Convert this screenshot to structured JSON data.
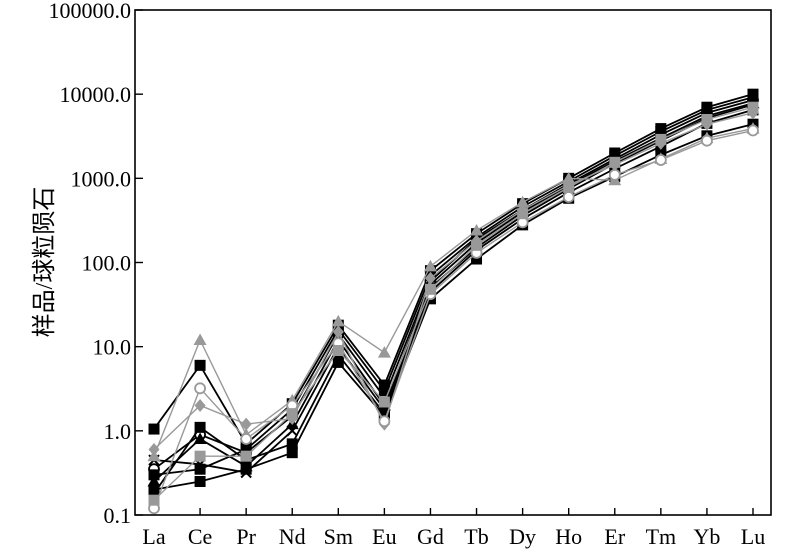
{
  "chart_data": {
    "type": "line",
    "y_scale": "log",
    "ylim": [
      0.1,
      100000
    ],
    "ylabel": "样品/球粒陨石",
    "xlabel": "",
    "title": "",
    "grid": false,
    "legend": "none",
    "categories": [
      "La",
      "Ce",
      "Pr",
      "Nd",
      "Sm",
      "Eu",
      "Gd",
      "Tb",
      "Dy",
      "Ho",
      "Er",
      "Tm",
      "Yb",
      "Lu"
    ],
    "y_tick_labels": [
      "100000.0",
      "10000.0",
      "1000.0",
      "100.0",
      "10.0",
      "1.0",
      "0.1"
    ],
    "series": [
      {
        "color": "#000000",
        "marker": "square",
        "values": [
          1.05,
          6.0,
          0.7,
          2.1,
          18,
          3.5,
          80,
          220,
          500,
          1000,
          2000,
          3900,
          7000,
          10000
        ]
      },
      {
        "color": "#000000",
        "marker": "square",
        "values": [
          0.2,
          0.25,
          0.35,
          0.55,
          6.5,
          1.5,
          37,
          110,
          280,
          580,
          1050,
          1900,
          3200,
          4400
        ]
      },
      {
        "color": "#000000",
        "marker": "circle",
        "values": [
          0.35,
          0.9,
          0.55,
          1.5,
          14,
          2.5,
          60,
          190,
          420,
          860,
          1700,
          3300,
          6000,
          8500
        ]
      },
      {
        "color": "#000000",
        "marker": "cross",
        "values": [
          0.45,
          0.4,
          0.32,
          1.0,
          10,
          1.8,
          50,
          150,
          360,
          750,
          1500,
          2800,
          5200,
          7500
        ]
      },
      {
        "color": "#000000",
        "marker": "square",
        "values": [
          0.18,
          1.1,
          0.45,
          0.7,
          8,
          1.6,
          45,
          140,
          330,
          680,
          1300,
          2400,
          4500,
          6500
        ]
      },
      {
        "color": "#000000",
        "marker": "triangle",
        "values": [
          0.25,
          0.8,
          0.38,
          1.2,
          12,
          2.0,
          55,
          170,
          400,
          820,
          1600,
          3000,
          5500,
          7800
        ]
      },
      {
        "color": "#000000",
        "marker": "square",
        "values": [
          0.3,
          0.35,
          0.6,
          1.8,
          16,
          3.0,
          70,
          200,
          460,
          920,
          1850,
          3600,
          6500,
          9200
        ]
      },
      {
        "color": "#999999",
        "marker": "triangle",
        "values": [
          0.5,
          12,
          0.9,
          2.3,
          20,
          8.5,
          90,
          240,
          520,
          1000,
          950,
          1700,
          3000,
          3900
        ]
      },
      {
        "color": "#999999",
        "marker": "diamond",
        "values": [
          0.6,
          2.0,
          1.2,
          1.4,
          15,
          1.2,
          65,
          180,
          420,
          830,
          1450,
          2600,
          4400,
          6000
        ]
      },
      {
        "color": "#999999",
        "marker": "circle",
        "values": [
          0.12,
          3.2,
          0.8,
          2.0,
          11,
          1.3,
          42,
          130,
          300,
          600,
          1100,
          1650,
          2800,
          3700
        ]
      },
      {
        "color": "#999999",
        "marker": "square",
        "values": [
          0.15,
          0.5,
          0.5,
          1.6,
          9,
          2.2,
          48,
          160,
          380,
          780,
          1550,
          2900,
          5000,
          7000
        ]
      }
    ]
  }
}
